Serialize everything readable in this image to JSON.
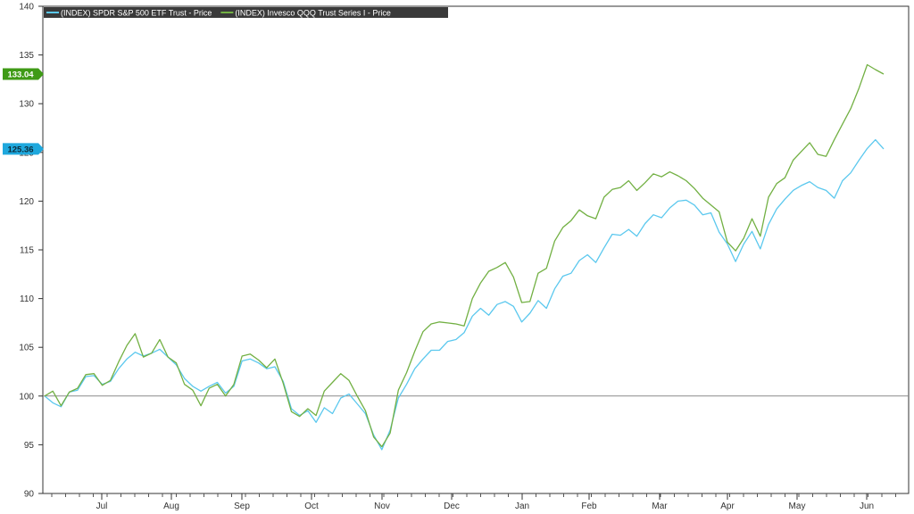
{
  "chart_data": {
    "type": "line",
    "ylim": [
      90,
      140
    ],
    "y_ticks": [
      90,
      95,
      100,
      105,
      110,
      115,
      120,
      125,
      130,
      135,
      140
    ],
    "baseline": 100,
    "x_labels": [
      "Jul",
      "Aug",
      "Sep",
      "Oct",
      "Nov",
      "Dec",
      "Jan",
      "Feb",
      "Mar",
      "Apr",
      "May",
      "Jun"
    ],
    "grid": false,
    "legend_position": "top-left",
    "series": [
      {
        "name": "(INDEX) SPDR S&P 500 ETF Trust - Price",
        "color": "#5bc8ee",
        "last_value": 125.36,
        "last_label": "125.36",
        "values": [
          100.0,
          99.3,
          98.9,
          100.4,
          100.6,
          102.0,
          102.1,
          101.2,
          101.5,
          102.8,
          103.8,
          104.5,
          104.1,
          104.4,
          104.8,
          104.0,
          103.2,
          101.8,
          101.0,
          100.5,
          101.0,
          101.4,
          100.3,
          101.0,
          103.6,
          103.8,
          103.4,
          102.8,
          103.0,
          101.5,
          98.7,
          98.0,
          98.5,
          97.3,
          98.8,
          98.2,
          99.8,
          100.2,
          99.2,
          98.2,
          96.0,
          94.5,
          96.5,
          99.8,
          101.2,
          102.8,
          103.8,
          104.7,
          104.7,
          105.6,
          105.8,
          106.5,
          108.2,
          109.0,
          108.3,
          109.4,
          109.7,
          109.2,
          107.6,
          108.5,
          109.8,
          109.0,
          111.0,
          112.3,
          112.6,
          113.9,
          114.5,
          113.7,
          115.2,
          116.6,
          116.5,
          117.1,
          116.4,
          117.7,
          118.6,
          118.3,
          119.3,
          120.0,
          120.1,
          119.6,
          118.6,
          118.8,
          116.8,
          115.6,
          113.8,
          115.6,
          116.9,
          115.1,
          117.6,
          119.2,
          120.2,
          121.1,
          121.6,
          122.0,
          121.4,
          121.1,
          120.3,
          122.1,
          122.9,
          124.2,
          125.4,
          126.3,
          125.36
        ]
      },
      {
        "name": "(INDEX) Invesco QQQ Trust Series I - Price",
        "color": "#72b043",
        "last_value": 133.04,
        "last_label": "133.04",
        "values": [
          100.0,
          100.5,
          99.0,
          100.4,
          100.8,
          102.2,
          102.3,
          101.1,
          101.6,
          103.5,
          105.2,
          106.4,
          104.0,
          104.4,
          105.8,
          104.0,
          103.4,
          101.2,
          100.6,
          99.0,
          100.8,
          101.2,
          100.0,
          101.2,
          104.1,
          104.3,
          103.7,
          102.9,
          103.8,
          101.3,
          98.4,
          97.9,
          98.7,
          98.0,
          100.5,
          101.4,
          102.3,
          101.6,
          100.0,
          98.5,
          95.8,
          94.8,
          96.2,
          100.6,
          102.4,
          104.6,
          106.6,
          107.4,
          107.6,
          107.5,
          107.4,
          107.2,
          110.0,
          111.6,
          112.8,
          113.2,
          113.7,
          112.2,
          109.6,
          109.7,
          112.6,
          113.1,
          115.9,
          117.3,
          118.0,
          119.1,
          118.5,
          118.2,
          120.4,
          121.2,
          121.4,
          122.1,
          121.1,
          121.9,
          122.8,
          122.5,
          123.0,
          122.6,
          122.1,
          121.3,
          120.3,
          119.6,
          118.9,
          115.8,
          114.9,
          116.2,
          118.2,
          116.4,
          120.4,
          121.8,
          122.4,
          124.2,
          125.1,
          126.0,
          124.8,
          124.6,
          126.3,
          127.9,
          129.5,
          131.6,
          134.0,
          133.5,
          133.04
        ]
      }
    ]
  }
}
